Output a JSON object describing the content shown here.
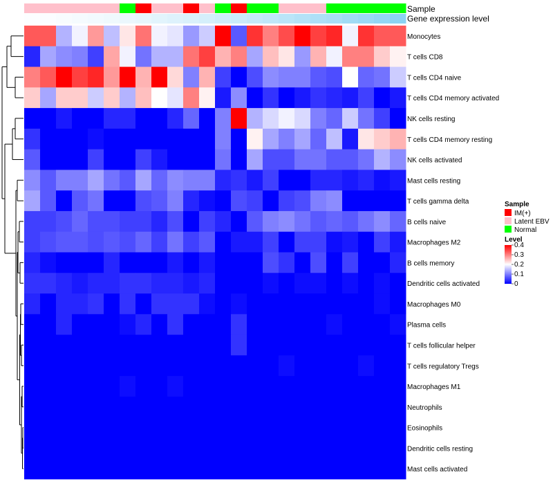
{
  "chart_data": {
    "type": "heatmap",
    "title": "",
    "rows": [
      "Monocytes",
      "T cells CD8",
      "T cells CD4 naive",
      "T cells CD4 memory activated",
      "NK cells resting",
      "T cells CD4 memory resting",
      "NK cells activated",
      "Mast cells resting",
      "T cells gamma delta",
      "B cells naive",
      "Macrophages M2",
      "B cells memory",
      "Dendritic cells activated",
      "Macrophages M0",
      "Plasma cells",
      "T cells follicular helper",
      "T cells regulatory  Tregs",
      "Macrophages M1",
      "Neutrophils",
      "Eosinophils",
      "Dendritic cells resting",
      "Mast cells activated"
    ],
    "column_count": 24,
    "values": [
      [
        0.33,
        0.33,
        0.14,
        0.19,
        0.28,
        0.15,
        0.22,
        0.31,
        0.19,
        0.18,
        0.12,
        0.16,
        0.4,
        0.07,
        0.36,
        0.3,
        0.34,
        0.4,
        0.35,
        0.37,
        0.19,
        0.36,
        0.33,
        0.33
      ],
      [
        0.03,
        0.13,
        0.11,
        0.1,
        0.05,
        0.27,
        0.19,
        0.09,
        0.14,
        0.14,
        0.31,
        0.35,
        0.26,
        0.3,
        0.13,
        0.25,
        0.22,
        0.12,
        0.26,
        0.19,
        0.3,
        0.3,
        0.24,
        0.21
      ],
      [
        0.3,
        0.33,
        0.4,
        0.35,
        0.37,
        0.28,
        0.4,
        0.26,
        0.4,
        0.23,
        0.1,
        0.26,
        0.05,
        0.0,
        0.06,
        0.11,
        0.1,
        0.1,
        0.07,
        0.06,
        0.2,
        0.08,
        0.09,
        0.16
      ],
      [
        0.24,
        0.13,
        0.24,
        0.24,
        0.16,
        0.24,
        0.14,
        0.25,
        0.2,
        0.18,
        0.3,
        0.21,
        0.02,
        0.11,
        0.0,
        0.04,
        0.0,
        0.02,
        0.04,
        0.03,
        0.02,
        0.05,
        0.0,
        0.02
      ],
      [
        0.0,
        0.0,
        0.02,
        0.0,
        0.0,
        0.03,
        0.03,
        0.0,
        0.0,
        0.03,
        0.08,
        0.0,
        0.1,
        0.4,
        0.14,
        0.17,
        0.19,
        0.17,
        0.1,
        0.08,
        0.16,
        0.09,
        0.05,
        0.0
      ],
      [
        0.04,
        0.0,
        0.0,
        0.0,
        0.01,
        0.0,
        0.0,
        0.0,
        0.0,
        0.0,
        0.0,
        0.0,
        0.1,
        0.0,
        0.21,
        0.13,
        0.1,
        0.13,
        0.08,
        0.15,
        0.02,
        0.22,
        0.24,
        0.26
      ],
      [
        0.07,
        0.0,
        0.0,
        0.0,
        0.05,
        0.0,
        0.0,
        0.05,
        0.02,
        0.0,
        0.0,
        0.0,
        0.09,
        0.0,
        0.13,
        0.06,
        0.06,
        0.09,
        0.09,
        0.07,
        0.07,
        0.09,
        0.14,
        0.11
      ],
      [
        0.11,
        0.07,
        0.1,
        0.1,
        0.13,
        0.09,
        0.07,
        0.13,
        0.08,
        0.11,
        0.1,
        0.1,
        0.03,
        0.04,
        0.02,
        0.05,
        0.0,
        0.0,
        0.03,
        0.03,
        0.02,
        0.03,
        0.01,
        0.02
      ],
      [
        0.13,
        0.07,
        0.0,
        0.07,
        0.09,
        0.0,
        0.0,
        0.06,
        0.07,
        0.1,
        0.03,
        0.01,
        0.0,
        0.06,
        0.05,
        0.0,
        0.05,
        0.06,
        0.1,
        0.11,
        0.0,
        0.0,
        0.0,
        0.0
      ],
      [
        0.05,
        0.05,
        0.06,
        0.08,
        0.06,
        0.06,
        0.05,
        0.05,
        0.03,
        0.06,
        0.0,
        0.05,
        0.03,
        0.0,
        0.07,
        0.1,
        0.11,
        0.09,
        0.07,
        0.08,
        0.07,
        0.09,
        0.11,
        0.08
      ],
      [
        0.05,
        0.06,
        0.07,
        0.07,
        0.06,
        0.07,
        0.06,
        0.08,
        0.05,
        0.09,
        0.05,
        0.07,
        0.0,
        0.02,
        0.02,
        0.05,
        0.0,
        0.05,
        0.05,
        0.01,
        0.02,
        0.0,
        0.05,
        0.02
      ],
      [
        0.03,
        0.01,
        0.0,
        0.0,
        0.0,
        0.03,
        0.0,
        0.0,
        0.0,
        0.02,
        0.0,
        0.02,
        0.0,
        0.0,
        0.0,
        0.06,
        0.04,
        0.0,
        0.06,
        0.0,
        0.05,
        0.0,
        0.0,
        0.03
      ],
      [
        0.04,
        0.04,
        0.03,
        0.02,
        0.03,
        0.03,
        0.04,
        0.04,
        0.03,
        0.03,
        0.02,
        0.03,
        0.0,
        0.0,
        0.0,
        0.01,
        0.0,
        0.01,
        0.01,
        0.0,
        0.01,
        0.0,
        0.01,
        0.0
      ],
      [
        0.03,
        0.0,
        0.03,
        0.03,
        0.04,
        0.0,
        0.04,
        0.0,
        0.04,
        0.04,
        0.04,
        0.01,
        0.0,
        0.01,
        0.0,
        0.0,
        0.0,
        0.0,
        0.0,
        0.0,
        0.0,
        0.0,
        0.01,
        0.0
      ],
      [
        0.0,
        0.0,
        0.03,
        0.0,
        0.0,
        0.0,
        0.01,
        0.03,
        0.0,
        0.04,
        0.0,
        0.0,
        0.0,
        0.04,
        0.0,
        0.0,
        0.0,
        0.0,
        0.0,
        0.01,
        0.0,
        0.0,
        0.0,
        0.01
      ],
      [
        0.0,
        0.0,
        0.0,
        0.0,
        0.0,
        0.0,
        0.0,
        0.0,
        0.0,
        0.0,
        0.0,
        0.0,
        0.0,
        0.04,
        0.0,
        0.0,
        0.0,
        0.0,
        0.0,
        0.0,
        0.0,
        0.0,
        0.0,
        0.0
      ],
      [
        0.0,
        0.0,
        0.0,
        0.0,
        0.0,
        0.0,
        0.0,
        0.0,
        0.0,
        0.0,
        0.0,
        0.0,
        0.0,
        0.0,
        0.0,
        0.0,
        0.01,
        0.0,
        0.0,
        0.0,
        0.0,
        0.01,
        0.0,
        0.0
      ],
      [
        0.0,
        0.0,
        0.0,
        0.0,
        0.0,
        0.0,
        0.01,
        0.0,
        0.0,
        0.01,
        0.0,
        0.0,
        0.0,
        0.0,
        0.0,
        0.0,
        0.0,
        0.0,
        0.0,
        0.0,
        0.0,
        0.0,
        0.0,
        0.0
      ],
      [
        0.0,
        0.0,
        0.0,
        0.0,
        0.0,
        0.0,
        0.0,
        0.0,
        0.0,
        0.0,
        0.0,
        0.0,
        0.0,
        0.0,
        0.0,
        0.0,
        0.0,
        0.0,
        0.0,
        0.0,
        0.0,
        0.0,
        0.0,
        0.0
      ],
      [
        0.0,
        0.0,
        0.0,
        0.0,
        0.0,
        0.0,
        0.0,
        0.0,
        0.0,
        0.0,
        0.0,
        0.0,
        0.0,
        0.0,
        0.0,
        0.0,
        0.0,
        0.0,
        0.0,
        0.0,
        0.0,
        0.0,
        0.0,
        0.0
      ],
      [
        0.0,
        0.0,
        0.0,
        0.0,
        0.0,
        0.0,
        0.0,
        0.0,
        0.0,
        0.0,
        0.0,
        0.0,
        0.0,
        0.0,
        0.0,
        0.0,
        0.0,
        0.0,
        0.0,
        0.0,
        0.0,
        0.0,
        0.0,
        0.0
      ],
      [
        0.0,
        0.0,
        0.0,
        0.0,
        0.0,
        0.0,
        0.0,
        0.0,
        0.0,
        0.0,
        0.0,
        0.0,
        0.0,
        0.0,
        0.0,
        0.0,
        0.0,
        0.0,
        0.0,
        0.0,
        0.0,
        0.0,
        0.0,
        0.0
      ]
    ],
    "annotations": [
      {
        "name": "Sample",
        "values": [
          "Latent EBV",
          "Latent EBV",
          "Latent EBV",
          "Latent EBV",
          "Latent EBV",
          "Latent EBV",
          "Normal",
          "IM(+)",
          "Latent EBV",
          "Latent EBV",
          "IM(+)",
          "Latent EBV",
          "Normal",
          "IM(+)",
          "Normal",
          "Normal",
          "Latent EBV",
          "Latent EBV",
          "Latent EBV",
          "Normal",
          "Normal",
          "Normal",
          "Normal",
          "Normal"
        ]
      },
      {
        "name": "Gene expression level",
        "values": [
          0.02,
          0.03,
          0.05,
          0.07,
          0.09,
          0.11,
          0.14,
          0.17,
          0.2,
          0.23,
          0.26,
          0.29,
          0.33,
          0.36,
          0.4,
          0.44,
          0.48,
          0.52,
          0.56,
          0.6,
          0.65,
          0.7,
          0.75,
          0.8
        ]
      }
    ],
    "legend": {
      "sample": {
        "title": "Sample",
        "items": [
          {
            "label": "IM(+)",
            "color": "#ff0000"
          },
          {
            "label": "Latent EBV",
            "color": "#ffc0cb"
          },
          {
            "label": "Normal",
            "color": "#00ff00"
          }
        ]
      },
      "level": {
        "title": "Level",
        "ticks": [
          0.4,
          0.3,
          0.2,
          0.1,
          0
        ],
        "range": [
          0,
          0.4
        ]
      }
    },
    "color_scale": {
      "low": "#0000ff",
      "mid": "#ffffff",
      "high": "#ff0000",
      "domain": [
        0,
        0.2,
        0.4
      ]
    },
    "gene_expression_scale": {
      "low": "#ffffff",
      "high": "#6fc8f0"
    },
    "dendrogram_side": "left"
  }
}
